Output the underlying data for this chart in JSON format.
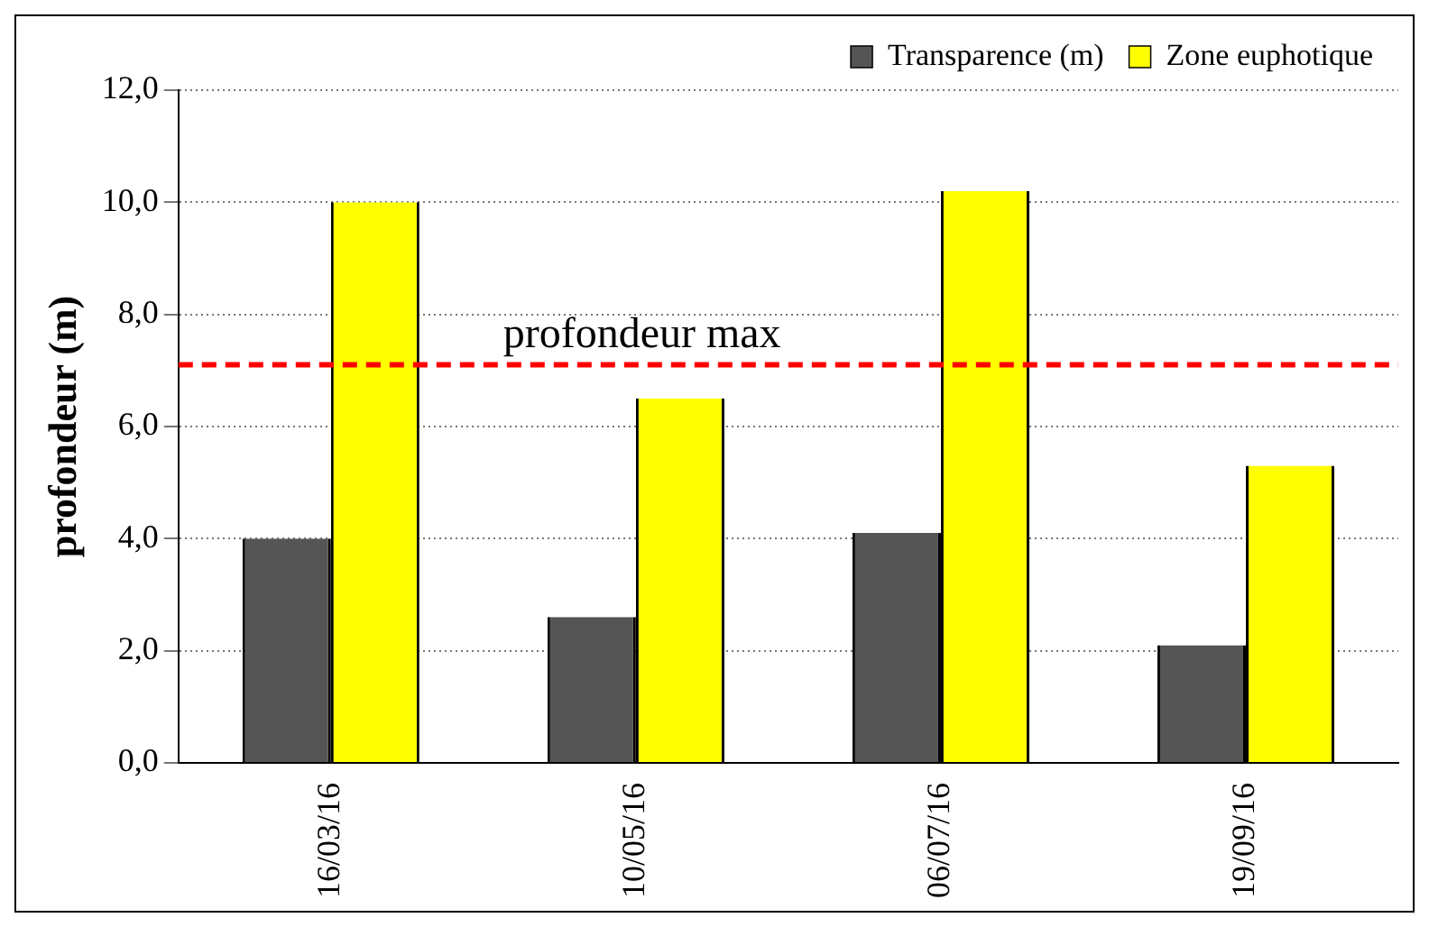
{
  "chart_data": {
    "type": "bar",
    "ylabel": "profondeur (m)",
    "categories": [
      "16/03/16",
      "10/05/16",
      "06/07/16",
      "19/09/16"
    ],
    "series": [
      {
        "name": "Transparence (m)",
        "color": "#555555",
        "values": [
          4.0,
          2.6,
          4.1,
          2.1
        ]
      },
      {
        "name": "Zone euphotique",
        "color": "#ffff00",
        "values": [
          10.0,
          6.5,
          10.2,
          5.3
        ]
      }
    ],
    "ylim": [
      0,
      12
    ],
    "yticks": [
      {
        "value": 0,
        "label": "0,0"
      },
      {
        "value": 2,
        "label": "2,0"
      },
      {
        "value": 4,
        "label": "4,0"
      },
      {
        "value": 6,
        "label": "6,0"
      },
      {
        "value": 8,
        "label": "8,0"
      },
      {
        "value": 10,
        "label": "10,0"
      },
      {
        "value": 12,
        "label": "12,0"
      }
    ],
    "ref_lines": [
      {
        "axis": "y",
        "value": 7.1,
        "label": "profondeur max",
        "color": "#ff0000",
        "line_style": "dashed"
      }
    ],
    "grid": "y",
    "legend": "top right"
  }
}
